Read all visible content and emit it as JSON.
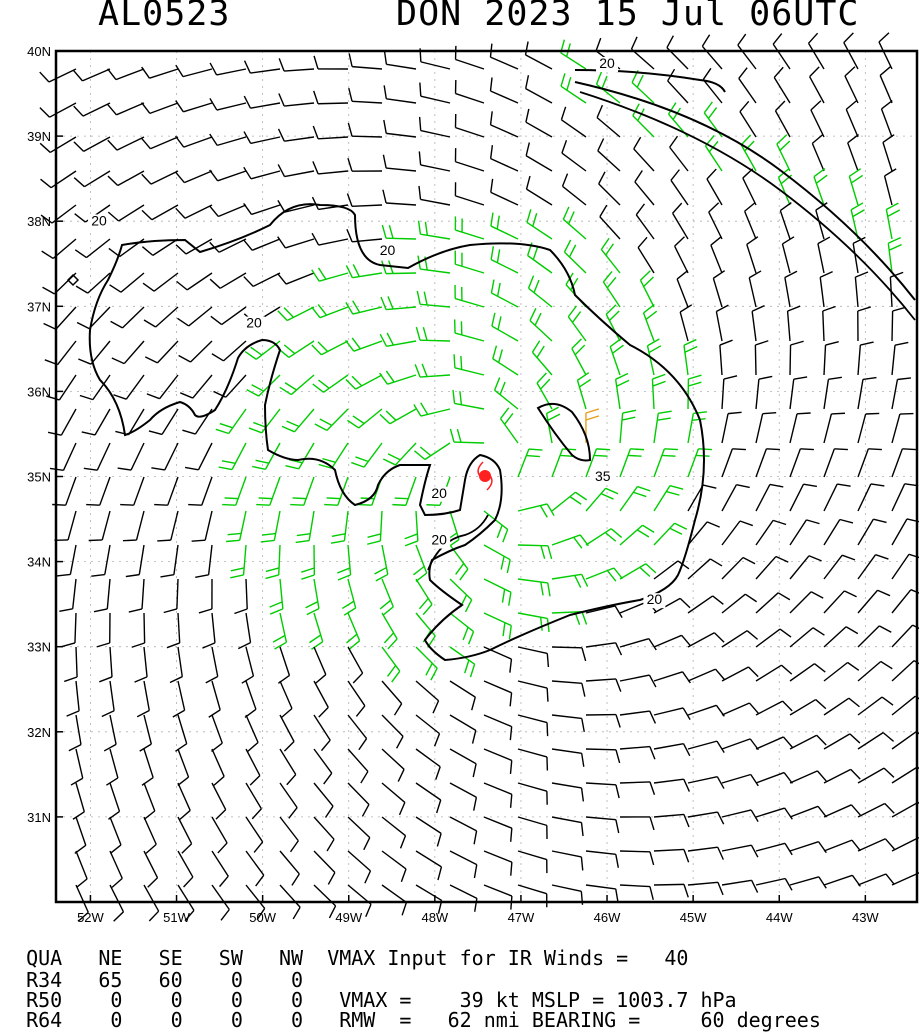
{
  "header": {
    "storm_id": "AL0523",
    "storm_time": "DON 2023 15 Jul 06UTC"
  },
  "chart_data": {
    "type": "wind barb map",
    "lon_range": [
      -52.4,
      -42.4
    ],
    "lat_range": [
      30.0,
      40.0
    ],
    "grid": true,
    "x_ticks": [
      "52W",
      "51W",
      "50W",
      "49W",
      "48W",
      "47W",
      "46W",
      "45W",
      "44W",
      "43W"
    ],
    "y_ticks": [
      "40N",
      "39N",
      "38N",
      "37N",
      "36N",
      "35N",
      "34N",
      "33N",
      "32N",
      "31N"
    ],
    "center": {
      "lon": -47.3,
      "lat": 35.0
    },
    "contour_labels": [
      {
        "text": "20",
        "lon": -46.0,
        "lat": 39.8
      },
      {
        "text": "20",
        "lon": -51.9,
        "lat": 37.95
      },
      {
        "text": "20",
        "lon": -48.55,
        "lat": 37.6
      },
      {
        "text": "20",
        "lon": -50.1,
        "lat": 36.75
      },
      {
        "text": "20",
        "lon": -47.95,
        "lat": 34.75
      },
      {
        "text": "20",
        "lon": -47.95,
        "lat": 34.2
      },
      {
        "text": "20",
        "lon": -45.45,
        "lat": 33.5
      },
      {
        "text": "35",
        "lon": -46.05,
        "lat": 34.95
      }
    ],
    "colors": {
      "calm": "#000000",
      "gale": "#00cc00",
      "storm": "#e8a020",
      "center": "#ff2020"
    }
  },
  "info": {
    "header_row": [
      "QUA",
      "NE",
      "SE",
      "SW",
      "NW"
    ],
    "vmax_input_label": "VMAX Input for IR Winds =",
    "vmax_input_value": "40",
    "r34": [
      "R34",
      "65",
      "60",
      "0",
      "0"
    ],
    "r50": [
      "R50",
      "0",
      "0",
      "0",
      "0"
    ],
    "r64": [
      "R64",
      "0",
      "0",
      "0",
      "0"
    ],
    "vmax_line": "VMAX =    39 kt MSLP = 1003.7 hPa",
    "rmw_line": "RMW  =   62 nmi BEARING =     60 degrees"
  }
}
